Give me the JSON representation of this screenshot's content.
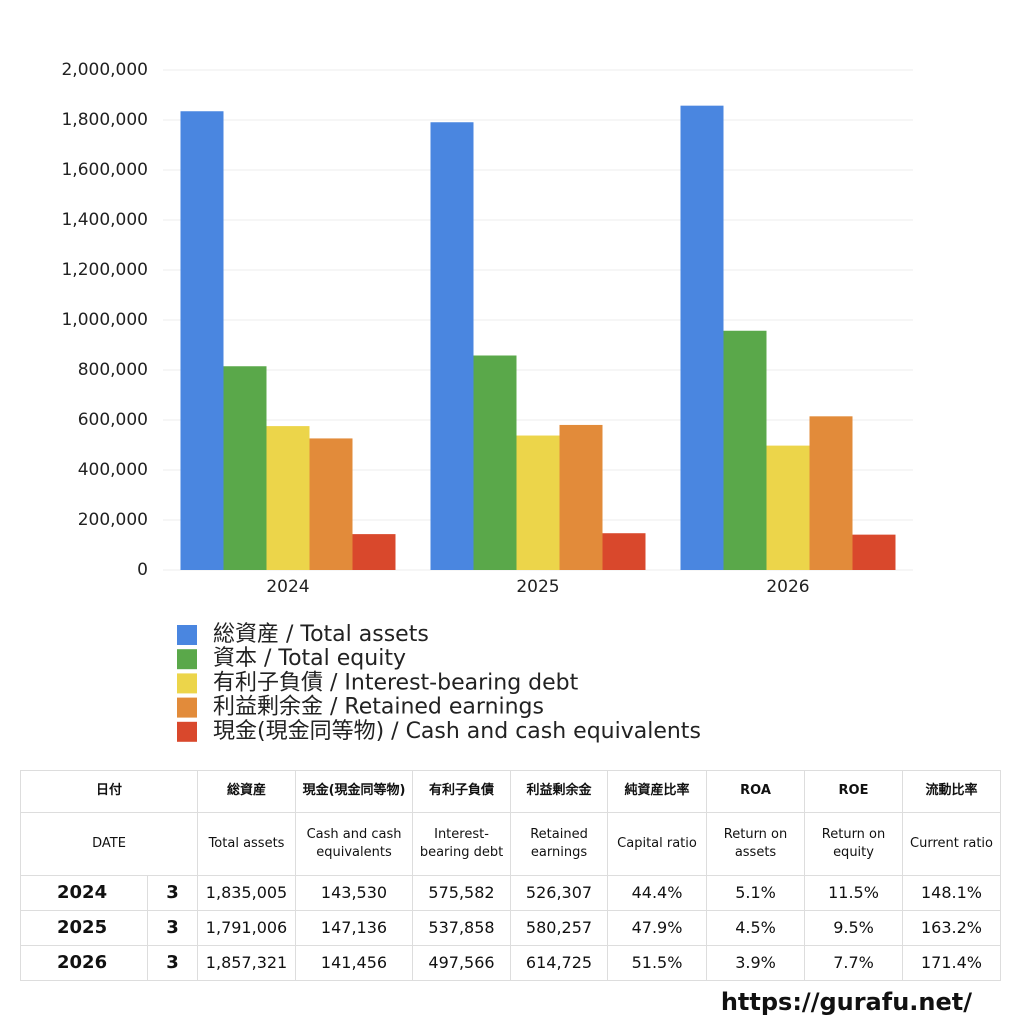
{
  "chart_data": {
    "type": "bar",
    "categories": [
      "2024",
      "2025",
      "2026"
    ],
    "series": [
      {
        "name": "総資産 / Total assets",
        "color": "#4a86e0",
        "values": [
          1835005,
          1791006,
          1857321
        ]
      },
      {
        "name": "資本 / Total equity",
        "color": "#5aa84a",
        "values": [
          815000,
          858000,
          957000
        ]
      },
      {
        "name": "有利子負債 / Interest-bearing debt",
        "color": "#ecd54a",
        "values": [
          575582,
          537858,
          497566
        ]
      },
      {
        "name": "利益剰余金 / Retained earnings",
        "color": "#e28b3a",
        "values": [
          526307,
          580257,
          614725
        ]
      },
      {
        "name": "現金(現金同等物) / Cash and cash equivalents",
        "color": "#d9482c",
        "values": [
          143530,
          147136,
          141456
        ]
      }
    ],
    "ylim": [
      0,
      2000000
    ],
    "yticks": [
      0,
      {
        "value": 200000,
        "label": "200,000"
      },
      {
        "value": 400000,
        "label": "400,000"
      },
      {
        "value": 600000,
        "label": "600,000"
      },
      {
        "value": 800000,
        "label": "800,000"
      },
      {
        "value": 1000000,
        "label": "1,000,000"
      },
      {
        "value": 1200000,
        "label": "1,200,000"
      },
      {
        "value": 1400000,
        "label": "1,400,000"
      },
      {
        "value": 1600000,
        "label": "1,600,000"
      },
      {
        "value": 1800000,
        "label": "1,800,000"
      },
      {
        "value": 2000000,
        "label": "2,000,000"
      }
    ],
    "grid": true
  },
  "table": {
    "header_jp": [
      "日付",
      "総資産",
      "現金(現金同等物)",
      "有利子負債",
      "利益剰余金",
      "純資産比率",
      "ROA",
      "ROE",
      "流動比率"
    ],
    "header_en": [
      "DATE",
      "Total assets",
      "Cash and cash equivalents",
      "Interest-bearing debt",
      "Retained earnings",
      "Capital ratio",
      "Return on assets",
      "Return on equity",
      "Current ratio"
    ],
    "rows": [
      [
        "2024",
        "3",
        "1,835,005",
        "143,530",
        "575,582",
        "526,307",
        "44.4%",
        "5.1%",
        "11.5%",
        "148.1%"
      ],
      [
        "2025",
        "3",
        "1,791,006",
        "147,136",
        "537,858",
        "580,257",
        "47.9%",
        "4.5%",
        "9.5%",
        "163.2%"
      ],
      [
        "2026",
        "3",
        "1,857,321",
        "141,456",
        "497,566",
        "614,725",
        "51.5%",
        "3.9%",
        "7.7%",
        "171.4%"
      ]
    ]
  },
  "footer": "https://gurafu.net/"
}
